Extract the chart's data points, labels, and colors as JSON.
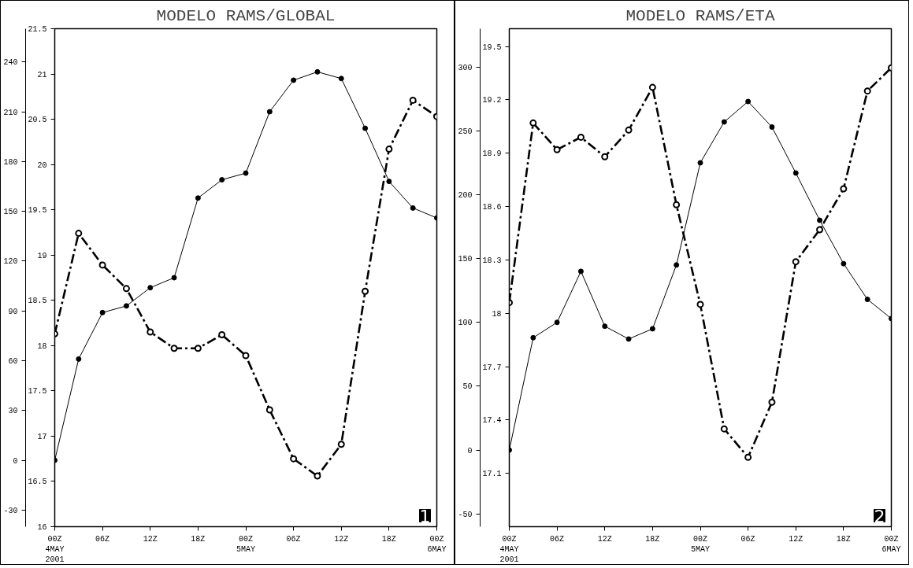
{
  "chart_data": [
    {
      "type": "line",
      "title": "MODELO RAMS/GLOBAL",
      "x": [
        "2001-05-04T00:00",
        "2001-05-04T03:00",
        "2001-05-04T06:00",
        "2001-05-04T09:00",
        "2001-05-04T12:00",
        "2001-05-04T15:00",
        "2001-05-04T18:00",
        "2001-05-04T21:00",
        "2001-05-05T00:00",
        "2001-05-05T03:00",
        "2001-05-05T06:00",
        "2001-05-05T09:00",
        "2001-05-05T12:00",
        "2001-05-05T15:00",
        "2001-05-05T18:00",
        "2001-05-05T21:00",
        "2001-05-06T00:00"
      ],
      "series": [
        {
          "color": "#000000",
          "line_style": "solid",
          "marker": "circle",
          "values": [
            0,
            61,
            89,
            93,
            104,
            110,
            158,
            169,
            173,
            210,
            229,
            234,
            230,
            200,
            168,
            152,
            146
          ]
        },
        {
          "color": "#000000",
          "line_style": "dashed",
          "marker": "circle",
          "axis": "y2",
          "values": [
            18.13,
            19.24,
            18.89,
            18.63,
            18.15,
            17.97,
            17.97,
            18.12,
            17.89,
            17.29,
            16.75,
            16.56,
            16.91,
            18.6,
            20.17,
            20.71,
            20.53
          ]
        }
      ],
      "xlim": [
        "2001-05-04T00:00",
        "2001-05-06T00:00"
      ],
      "xticks": [
        {
          "value": "2001-05-04T00:00",
          "label": "00Z\n4MAY\n2001"
        },
        {
          "value": "2001-05-04T06:00",
          "label": "06Z"
        },
        {
          "value": "2001-05-04T12:00",
          "label": "12Z"
        },
        {
          "value": "2001-05-04T18:00",
          "label": "18Z"
        },
        {
          "value": "2001-05-05T00:00",
          "label": "00Z\n5MAY"
        },
        {
          "value": "2001-05-05T06:00",
          "label": "06Z"
        },
        {
          "value": "2001-05-05T12:00",
          "label": "12Z"
        },
        {
          "value": "2001-05-05T18:00",
          "label": "18Z"
        },
        {
          "value": "2001-05-06T00:00",
          "label": "00Z\n6MAY"
        }
      ],
      "ylim": [
        -40,
        260
      ],
      "yticks": [
        -30,
        0,
        30,
        60,
        90,
        120,
        150,
        180,
        210,
        240
      ],
      "y2lim": [
        16,
        21.5
      ],
      "y2ticks": [
        16,
        16.5,
        17,
        17.5,
        18,
        18.5,
        19,
        19.5,
        20,
        20.5,
        21,
        21.5
      ],
      "annotations": [
        "1"
      ],
      "grid": false
    },
    {
      "type": "line",
      "title": "MODELO RAMS/ETA",
      "x": [
        "2001-05-04T00:00",
        "2001-05-04T03:00",
        "2001-05-04T06:00",
        "2001-05-04T09:00",
        "2001-05-04T12:00",
        "2001-05-04T15:00",
        "2001-05-04T18:00",
        "2001-05-04T21:00",
        "2001-05-05T00:00",
        "2001-05-05T03:00",
        "2001-05-05T06:00",
        "2001-05-05T09:00",
        "2001-05-05T12:00",
        "2001-05-05T15:00",
        "2001-05-05T18:00",
        "2001-05-05T21:00",
        "2001-05-06T00:00"
      ],
      "series": [
        {
          "color": "#000000",
          "line_style": "solid",
          "marker": "circle",
          "values": [
            0,
            88,
            100,
            140,
            97,
            87,
            95,
            145,
            225,
            257,
            273,
            253,
            217,
            180,
            146,
            118,
            103
          ]
        },
        {
          "color": "#000000",
          "line_style": "dashed",
          "marker": "circle",
          "axis": "y2",
          "values": [
            18.06,
            19.07,
            18.92,
            18.99,
            18.88,
            19.03,
            19.27,
            18.61,
            18.05,
            17.35,
            17.19,
            17.5,
            18.29,
            18.47,
            18.7,
            19.25,
            19.38
          ]
        }
      ],
      "xlim": [
        "2001-05-04T00:00",
        "2001-05-06T00:00"
      ],
      "xticks": [
        {
          "value": "2001-05-04T00:00",
          "label": "00Z\n4MAY\n2001"
        },
        {
          "value": "2001-05-04T06:00",
          "label": "06Z"
        },
        {
          "value": "2001-05-04T12:00",
          "label": "12Z"
        },
        {
          "value": "2001-05-04T18:00",
          "label": "18Z"
        },
        {
          "value": "2001-05-05T00:00",
          "label": "00Z\n5MAY"
        },
        {
          "value": "2001-05-05T06:00",
          "label": "06Z"
        },
        {
          "value": "2001-05-05T12:00",
          "label": "12Z"
        },
        {
          "value": "2001-05-05T18:00",
          "label": "18Z"
        },
        {
          "value": "2001-05-06T00:00",
          "label": "00Z\n6MAY"
        }
      ],
      "ylim": [
        -60,
        330
      ],
      "yticks": [
        -50,
        0,
        50,
        100,
        150,
        200,
        250,
        300
      ],
      "y2lim": [
        16.8,
        19.6
      ],
      "y2ticks": [
        17.1,
        17.4,
        17.7,
        18,
        18.3,
        18.6,
        18.9,
        19.2,
        19.5
      ],
      "annotations": [
        "2"
      ],
      "grid": false
    }
  ]
}
